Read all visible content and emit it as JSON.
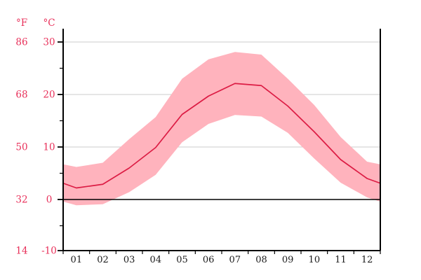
{
  "chart_data": {
    "type": "area",
    "x_tick_labels": [
      "01",
      "02",
      "03",
      "04",
      "05",
      "06",
      "07",
      "08",
      "09",
      "10",
      "11",
      "12"
    ],
    "fahrenheit_axis": {
      "header": "°F",
      "tick_labels": [
        "86",
        "68",
        "50",
        "32",
        "14"
      ]
    },
    "celsius_axis": {
      "header": "°C",
      "tick_labels": [
        "30",
        "20",
        "10",
        "0",
        "-10"
      ]
    },
    "y_major_ticks_c": [
      30,
      20,
      10,
      0,
      -10
    ],
    "y_minor_ticks_c": [
      25,
      15,
      5,
      -5
    ],
    "gridlines_c": [
      30,
      20,
      10
    ],
    "zero_line_c": 0,
    "ylim_c": [
      -10,
      32
    ],
    "grid": "horizontal-only",
    "legend": "none",
    "series": [
      {
        "name": "daily_max",
        "values": [
          6.2,
          7.0,
          11.5,
          15.7,
          23.0,
          26.7,
          28.1,
          27.6,
          23.0,
          18.0,
          11.9,
          7.2
        ]
      },
      {
        "name": "mean",
        "values": [
          2.2,
          2.9,
          6.0,
          9.9,
          16.2,
          19.7,
          22.1,
          21.7,
          17.8,
          12.9,
          7.6,
          4.0
        ]
      },
      {
        "name": "daily_min",
        "values": [
          -1.1,
          -0.9,
          1.4,
          4.7,
          10.9,
          14.4,
          16.1,
          15.8,
          12.7,
          7.8,
          3.2,
          0.4
        ]
      }
    ],
    "edge_values": {
      "mean": 3.1,
      "daily_max": 6.7,
      "daily_min": -0.4
    },
    "colors": {
      "band": "#FFB3BD",
      "mean_line": "#DC1C44",
      "axis_labels_red": "#E8305A",
      "month_labels": "#1a1a1a",
      "gridline": "#cccccc",
      "zero_line": "#000000",
      "axis": "#000000"
    }
  }
}
